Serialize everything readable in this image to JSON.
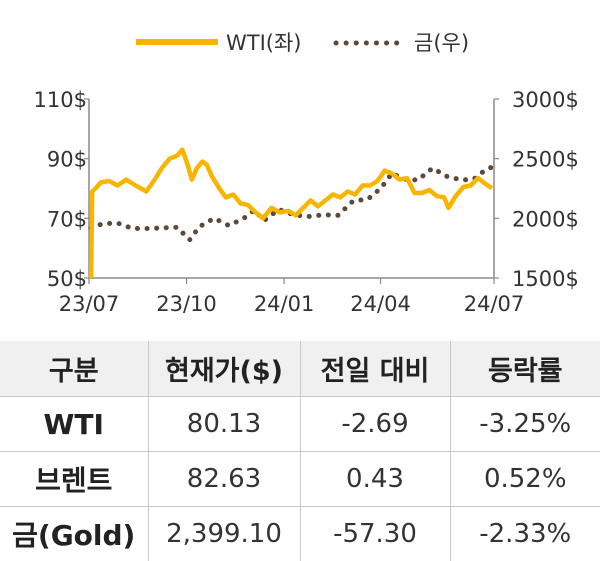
{
  "chart_data": {
    "type": "line",
    "legend": {
      "placement": "top-center",
      "entries": [
        {
          "name": "WTI(좌)",
          "color": "#f7b500",
          "style": "solid"
        },
        {
          "name": "금(우)",
          "color": "#5b4a3a",
          "style": "dotted"
        }
      ]
    },
    "x_tick_labels": [
      "23/07",
      "23/10",
      "24/01",
      "24/04",
      "24/07"
    ],
    "y_left": {
      "range": [
        50,
        110
      ],
      "ticks": [
        "50$",
        "70$",
        "90$",
        "110$"
      ]
    },
    "y_right": {
      "range": [
        1500,
        3000
      ],
      "ticks": [
        "1500$",
        "2000$",
        "2500$",
        "3000$"
      ]
    },
    "grid": false,
    "series": [
      {
        "name": "WTI(좌)",
        "axis": "left",
        "points": [
          [
            "2023-07-03",
            50
          ],
          [
            "2023-07-04",
            79
          ],
          [
            "2023-07-07",
            80
          ],
          [
            "2023-07-12",
            82
          ],
          [
            "2023-07-20",
            82.5
          ],
          [
            "2023-07-28",
            81
          ],
          [
            "2023-08-05",
            83
          ],
          [
            "2023-08-14",
            81
          ],
          [
            "2023-08-24",
            79
          ],
          [
            "2023-09-01",
            83
          ],
          [
            "2023-09-08",
            87
          ],
          [
            "2023-09-15",
            90
          ],
          [
            "2023-09-22",
            91
          ],
          [
            "2023-09-27",
            93
          ],
          [
            "2023-10-02",
            88
          ],
          [
            "2023-10-06",
            83
          ],
          [
            "2023-10-11",
            87
          ],
          [
            "2023-10-16",
            89
          ],
          [
            "2023-10-20",
            88
          ],
          [
            "2023-10-25",
            84
          ],
          [
            "2023-11-01",
            80
          ],
          [
            "2023-11-07",
            77
          ],
          [
            "2023-11-14",
            78
          ],
          [
            "2023-11-21",
            75
          ],
          [
            "2023-11-28",
            74.5
          ],
          [
            "2023-12-05",
            72
          ],
          [
            "2023-12-12",
            70
          ],
          [
            "2023-12-20",
            73.5
          ],
          [
            "2023-12-28",
            72
          ],
          [
            "2024-01-05",
            72.5
          ],
          [
            "2024-01-12",
            71
          ],
          [
            "2024-01-19",
            73.5
          ],
          [
            "2024-01-26",
            76
          ],
          [
            "2024-02-02",
            74
          ],
          [
            "2024-02-09",
            76
          ],
          [
            "2024-02-16",
            78
          ],
          [
            "2024-02-23",
            77
          ],
          [
            "2024-03-01",
            79
          ],
          [
            "2024-03-08",
            78
          ],
          [
            "2024-03-15",
            81
          ],
          [
            "2024-03-22",
            81
          ],
          [
            "2024-03-29",
            82.5
          ],
          [
            "2024-04-05",
            86
          ],
          [
            "2024-04-12",
            85
          ],
          [
            "2024-04-19",
            83
          ],
          [
            "2024-04-26",
            83.5
          ],
          [
            "2024-05-03",
            78.5
          ],
          [
            "2024-05-10",
            78.5
          ],
          [
            "2024-05-17",
            79.5
          ],
          [
            "2024-05-24",
            77.5
          ],
          [
            "2024-05-31",
            77
          ],
          [
            "2024-06-04",
            73.5
          ],
          [
            "2024-06-11",
            77.5
          ],
          [
            "2024-06-18",
            80.5
          ],
          [
            "2024-06-25",
            81
          ],
          [
            "2024-07-02",
            83.5
          ],
          [
            "2024-07-09",
            81.5
          ],
          [
            "2024-07-15",
            80.1
          ]
        ]
      },
      {
        "name": "금(우)",
        "axis": "right",
        "points": [
          [
            "2023-07-03",
            1920
          ],
          [
            "2023-07-14",
            1955
          ],
          [
            "2023-07-28",
            1960
          ],
          [
            "2023-08-11",
            1915
          ],
          [
            "2023-08-25",
            1915
          ],
          [
            "2023-09-08",
            1920
          ],
          [
            "2023-09-22",
            1925
          ],
          [
            "2023-10-04",
            1820
          ],
          [
            "2023-10-13",
            1930
          ],
          [
            "2023-10-27",
            2000
          ],
          [
            "2023-11-10",
            1940
          ],
          [
            "2023-11-24",
            2000
          ],
          [
            "2023-12-04",
            2070
          ],
          [
            "2023-12-13",
            1980
          ],
          [
            "2023-12-27",
            2075
          ],
          [
            "2024-01-10",
            2030
          ],
          [
            "2024-01-24",
            2015
          ],
          [
            "2024-02-07",
            2030
          ],
          [
            "2024-02-21",
            2025
          ],
          [
            "2024-03-06",
            2145
          ],
          [
            "2024-03-20",
            2160
          ],
          [
            "2024-04-01",
            2250
          ],
          [
            "2024-04-12",
            2380
          ],
          [
            "2024-04-22",
            2330
          ],
          [
            "2024-05-06",
            2320
          ],
          [
            "2024-05-20",
            2420
          ],
          [
            "2024-06-03",
            2350
          ],
          [
            "2024-06-17",
            2320
          ],
          [
            "2024-06-28",
            2330
          ],
          [
            "2024-07-08",
            2400
          ],
          [
            "2024-07-15",
            2430
          ]
        ]
      }
    ]
  },
  "table": {
    "headers": [
      "구분",
      "현재가($)",
      "전일 대비",
      "등락률"
    ],
    "rows": [
      {
        "name": "WTI",
        "price": "80.13",
        "change": "-2.69",
        "rate": "-3.25%"
      },
      {
        "name": "브렌트",
        "price": "82.63",
        "change": "0.43",
        "rate": "0.52%"
      },
      {
        "name": "금(Gold)",
        "price": "2,399.10",
        "change": "-57.30",
        "rate": "-2.33%"
      }
    ]
  }
}
